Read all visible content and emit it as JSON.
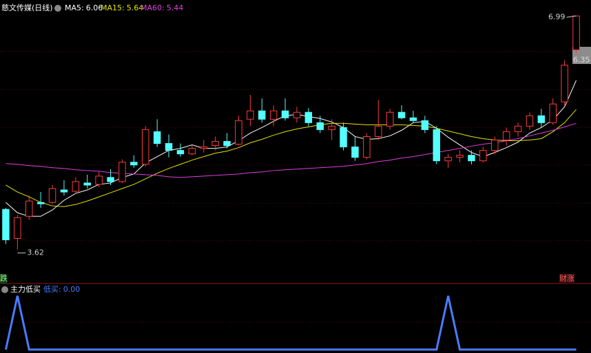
{
  "chart_data": [
    {
      "type": "candlestick",
      "title": "慈文传媒(日线)",
      "ylim": [
        3.15,
        7.22
      ],
      "up_color": "#ff3c3c",
      "down_color": "#54ffff",
      "open": [
        4.2,
        3.78,
        4.1,
        4.3,
        4.3,
        4.48,
        4.46,
        4.58,
        4.56,
        4.66,
        4.6,
        4.88,
        4.85,
        5.32,
        5.15,
        5.05,
        5.0,
        5.08,
        5.12,
        5.18,
        5.14,
        5.5,
        5.62,
        5.5,
        5.62,
        5.52,
        5.6,
        5.45,
        5.35,
        5.38,
        5.1,
        4.95,
        5.25,
        5.4,
        5.6,
        5.52,
        5.48,
        5.35,
        4.9,
        4.95,
        4.98,
        4.9,
        5.05,
        5.2,
        5.32,
        5.4,
        5.55,
        5.45,
        5.75,
        6.5
      ],
      "high": [
        4.22,
        4.12,
        4.4,
        4.45,
        4.55,
        4.62,
        4.66,
        4.7,
        4.74,
        4.78,
        4.92,
        4.98,
        5.4,
        5.5,
        5.28,
        5.15,
        5.12,
        5.2,
        5.25,
        5.3,
        5.55,
        5.85,
        5.8,
        5.7,
        5.8,
        5.68,
        5.66,
        5.55,
        5.5,
        5.45,
        5.25,
        5.3,
        5.78,
        5.65,
        5.7,
        5.62,
        5.55,
        5.4,
        5.0,
        5.05,
        5.05,
        5.1,
        5.25,
        5.38,
        5.45,
        5.6,
        5.65,
        5.8,
        6.35,
        6.99
      ],
      "low": [
        3.7,
        3.62,
        4.05,
        4.22,
        4.28,
        4.4,
        4.42,
        4.5,
        4.52,
        4.55,
        4.58,
        4.8,
        4.82,
        5.1,
        4.95,
        4.96,
        4.98,
        5.02,
        5.05,
        5.08,
        5.12,
        5.4,
        5.45,
        5.4,
        5.48,
        5.45,
        5.4,
        5.3,
        5.2,
        5.05,
        4.9,
        4.92,
        5.2,
        5.35,
        5.5,
        5.45,
        5.3,
        4.85,
        4.8,
        4.88,
        4.85,
        4.88,
        5.0,
        5.12,
        5.25,
        5.35,
        5.38,
        5.42,
        5.7,
        6.45
      ],
      "close": [
        3.76,
        4.08,
        4.32,
        4.28,
        4.5,
        4.45,
        4.6,
        4.55,
        4.68,
        4.6,
        4.88,
        4.84,
        5.35,
        5.15,
        5.05,
        5.0,
        5.08,
        5.1,
        5.18,
        5.12,
        5.48,
        5.62,
        5.5,
        5.62,
        5.52,
        5.6,
        5.45,
        5.35,
        5.4,
        5.1,
        4.95,
        5.25,
        5.4,
        5.6,
        5.52,
        5.48,
        5.35,
        4.9,
        4.95,
        4.98,
        4.9,
        5.05,
        5.2,
        5.32,
        5.4,
        5.55,
        5.45,
        5.72,
        6.28,
        6.99
      ],
      "series": [
        {
          "name": "MA5:",
          "color": "#ffffff",
          "values": [
            4.3,
            4.15,
            4.1,
            4.1,
            4.19,
            4.33,
            4.43,
            4.48,
            4.56,
            4.58,
            4.66,
            4.71,
            4.87,
            4.96,
            5.05,
            5.08,
            5.13,
            5.08,
            5.08,
            5.1,
            5.19,
            5.3,
            5.38,
            5.47,
            5.55,
            5.57,
            5.54,
            5.51,
            5.46,
            5.38,
            5.25,
            5.21,
            5.22,
            5.26,
            5.34,
            5.45,
            5.47,
            5.37,
            5.24,
            5.13,
            5.02,
            4.96,
            5.02,
            5.09,
            5.17,
            5.3,
            5.38,
            5.49,
            5.68,
            6.06
          ]
        },
        {
          "name": "MA15:",
          "color": "#e6e600",
          "values": [
            4.55,
            4.45,
            4.38,
            4.3,
            4.25,
            4.24,
            4.27,
            4.32,
            4.38,
            4.44,
            4.5,
            4.56,
            4.64,
            4.72,
            4.79,
            4.85,
            4.91,
            4.96,
            5.01,
            5.04,
            5.09,
            5.16,
            5.21,
            5.27,
            5.32,
            5.36,
            5.39,
            5.42,
            5.44,
            5.44,
            5.43,
            5.42,
            5.42,
            5.42,
            5.42,
            5.41,
            5.4,
            5.37,
            5.33,
            5.29,
            5.25,
            5.22,
            5.2,
            5.19,
            5.19,
            5.2,
            5.22,
            5.32,
            5.45,
            5.64
          ]
        },
        {
          "name": "MA60:",
          "color": "#e040e0",
          "values": [
            4.86,
            4.85,
            4.83,
            4.82,
            4.8,
            4.79,
            4.77,
            4.76,
            4.75,
            4.73,
            4.72,
            4.71,
            4.7,
            4.69,
            4.67,
            4.66,
            4.67,
            4.68,
            4.69,
            4.7,
            4.71,
            4.73,
            4.74,
            4.76,
            4.77,
            4.78,
            4.79,
            4.8,
            4.81,
            4.82,
            4.84,
            4.86,
            4.89,
            4.91,
            4.94,
            4.96,
            4.99,
            5.02,
            5.05,
            5.08,
            5.11,
            5.14,
            5.16,
            5.19,
            5.22,
            5.26,
            5.3,
            5.34,
            5.39,
            5.44
          ]
        }
      ],
      "max_price": 6.99,
      "min_price": 3.62,
      "right_price": 6.35,
      "badges": [
        "跌",
        "财",
        "涨"
      ]
    },
    {
      "type": "line",
      "title": "主力低买",
      "series": [
        {
          "name": "低买:",
          "color": "#4a7cff",
          "current": {
            "value": 0,
            "label": "0.00"
          },
          "values": [
            0,
            1,
            0,
            0,
            0,
            0,
            0,
            0,
            0,
            0,
            0,
            0,
            0,
            0,
            0,
            0,
            0,
            0,
            0,
            0,
            0,
            0,
            0,
            0,
            0,
            0,
            0,
            0,
            0,
            0,
            0,
            0,
            0,
            0,
            0,
            0,
            0,
            0,
            1,
            0,
            0,
            0,
            0,
            0,
            0,
            0,
            0,
            0,
            0,
            0
          ]
        }
      ],
      "ylim": [
        0,
        1
      ]
    }
  ]
}
